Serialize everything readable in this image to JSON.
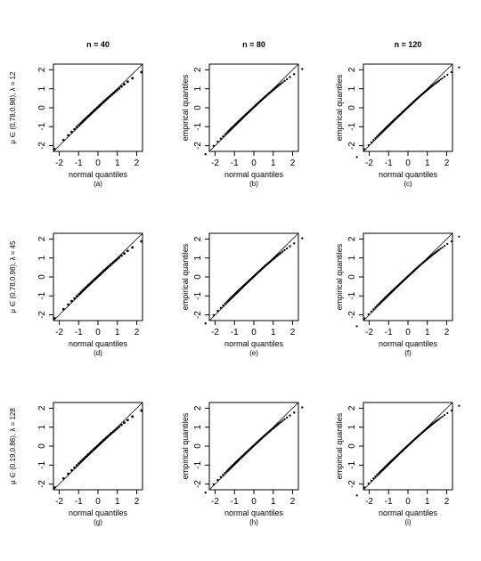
{
  "column_titles": [
    "n = 40",
    "n = 80",
    "n = 120"
  ],
  "row_labels": [
    "μ ∈ (0.78,0.98), λ = 12",
    "μ ∈ (0.78,0.98), λ = 45",
    "μ ∈ (0.19,0.86), λ = 128"
  ],
  "chart_data": [
    {
      "type": "scatter",
      "panel": "(a)",
      "row": 0,
      "col": 0,
      "n": 40,
      "xlabel": "normal quantiles",
      "ylabel": "",
      "xlim": [
        -2.3,
        2.3
      ],
      "ylim": [
        -2.3,
        2.3
      ],
      "xticks": [
        -2,
        -1,
        0,
        1,
        2
      ],
      "yticks": [
        -2,
        -1,
        0,
        1,
        2
      ],
      "reference_line": "y = x",
      "grid": false
    },
    {
      "type": "scatter",
      "panel": "(b)",
      "row": 0,
      "col": 1,
      "n": 80,
      "xlabel": "normal quantiles",
      "ylabel": "empirical quantiles",
      "xlim": [
        -2.3,
        2.3
      ],
      "ylim": [
        -2.3,
        2.3
      ],
      "xticks": [
        -2,
        -1,
        0,
        1,
        2
      ],
      "yticks": [
        -2,
        -1,
        0,
        1,
        2
      ],
      "reference_line": "y = x",
      "grid": false
    },
    {
      "type": "scatter",
      "panel": "(c)",
      "row": 0,
      "col": 2,
      "n": 120,
      "xlabel": "normal quantiles",
      "ylabel": "empirical quantiles",
      "xlim": [
        -2.3,
        2.3
      ],
      "ylim": [
        -2.3,
        2.3
      ],
      "xticks": [
        -2,
        -1,
        0,
        1,
        2
      ],
      "yticks": [
        -2,
        -1,
        0,
        1,
        2
      ],
      "reference_line": "y = x",
      "grid": false
    },
    {
      "type": "scatter",
      "panel": "(d)",
      "row": 1,
      "col": 0,
      "n": 40,
      "xlabel": "normal quantiles",
      "ylabel": "",
      "xlim": [
        -2.3,
        2.3
      ],
      "ylim": [
        -2.3,
        2.3
      ],
      "xticks": [
        -2,
        -1,
        0,
        1,
        2
      ],
      "yticks": [
        -2,
        -1,
        0,
        1,
        2
      ],
      "reference_line": "y = x",
      "grid": false
    },
    {
      "type": "scatter",
      "panel": "(e)",
      "row": 1,
      "col": 1,
      "n": 80,
      "xlabel": "normal quantiles",
      "ylabel": "empirical quantiles",
      "xlim": [
        -2.3,
        2.3
      ],
      "ylim": [
        -2.3,
        2.3
      ],
      "xticks": [
        -2,
        -1,
        0,
        1,
        2
      ],
      "yticks": [
        -2,
        -1,
        0,
        1,
        2
      ],
      "reference_line": "y = x",
      "grid": false
    },
    {
      "type": "scatter",
      "panel": "(f)",
      "row": 1,
      "col": 2,
      "n": 120,
      "xlabel": "normal quantiles",
      "ylabel": "empirical quantiles",
      "xlim": [
        -2.3,
        2.3
      ],
      "ylim": [
        -2.3,
        2.3
      ],
      "xticks": [
        -2,
        -1,
        0,
        1,
        2
      ],
      "yticks": [
        -2,
        -1,
        0,
        1,
        2
      ],
      "reference_line": "y = x",
      "grid": false
    },
    {
      "type": "scatter",
      "panel": "(g)",
      "row": 2,
      "col": 0,
      "n": 40,
      "xlabel": "normal quantiles",
      "ylabel": "",
      "xlim": [
        -2.3,
        2.3
      ],
      "ylim": [
        -2.3,
        2.3
      ],
      "xticks": [
        -2,
        -1,
        0,
        1,
        2
      ],
      "yticks": [
        -2,
        -1,
        0,
        1,
        2
      ],
      "reference_line": "y = x",
      "grid": false
    },
    {
      "type": "scatter",
      "panel": "(h)",
      "row": 2,
      "col": 1,
      "n": 80,
      "xlabel": "normal quantiles",
      "ylabel": "empirical quantiles",
      "xlim": [
        -2.3,
        2.3
      ],
      "ylim": [
        -2.3,
        2.3
      ],
      "xticks": [
        -2,
        -1,
        0,
        1,
        2
      ],
      "yticks": [
        -2,
        -1,
        0,
        1,
        2
      ],
      "reference_line": "y = x",
      "grid": false
    },
    {
      "type": "scatter",
      "panel": "(i)",
      "row": 2,
      "col": 2,
      "n": 120,
      "xlabel": "normal quantiles",
      "ylabel": "empirical quantiles",
      "xlim": [
        -2.3,
        2.3
      ],
      "ylim": [
        -2.3,
        2.3
      ],
      "xticks": [
        -2,
        -1,
        0,
        1,
        2
      ],
      "yticks": [
        -2,
        -1,
        0,
        1,
        2
      ],
      "reference_line": "y = x",
      "grid": false
    }
  ]
}
